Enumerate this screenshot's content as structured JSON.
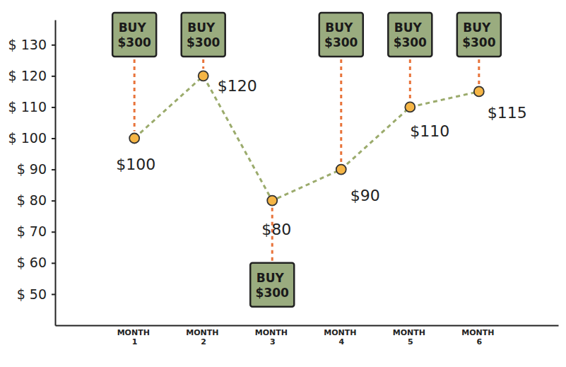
{
  "chart_data": {
    "type": "line",
    "categories": [
      "MONTH 1",
      "MONTH 2",
      "MONTH 3",
      "MONTH 4",
      "MONTH 5",
      "MONTH 6"
    ],
    "values": [
      100,
      120,
      80,
      90,
      110,
      115
    ],
    "value_labels": [
      "$100",
      "$120",
      "$80",
      "$90",
      "$110",
      "$115"
    ],
    "data_labels": true,
    "color": "#9bab6c",
    "marker": "circle",
    "line_style": "dashed",
    "ylim": [
      40,
      138
    ],
    "yticks": [
      {
        "value": 50,
        "label": "$ 50"
      },
      {
        "value": 60,
        "label": "$ 60"
      },
      {
        "value": 70,
        "label": "$ 70"
      },
      {
        "value": 80,
        "label": "$ 80"
      },
      {
        "value": 90,
        "label": "$ 90"
      },
      {
        "value": 100,
        "label": "$ 100"
      },
      {
        "value": 110,
        "label": "$ 110"
      },
      {
        "value": 120,
        "label": "$ 120"
      },
      {
        "value": 130,
        "label": "$ 130"
      }
    ],
    "annotations": [
      {
        "category": "MONTH 1",
        "text": "BUY $300"
      },
      {
        "category": "MONTH 2",
        "text": "BUY $300"
      },
      {
        "category": "MONTH 3",
        "text": "BUY $300"
      },
      {
        "category": "MONTH 4",
        "text": "BUY $300"
      },
      {
        "category": "MONTH 5",
        "text": "BUY $300"
      },
      {
        "category": "MONTH 6",
        "text": "BUY $300"
      }
    ]
  }
}
